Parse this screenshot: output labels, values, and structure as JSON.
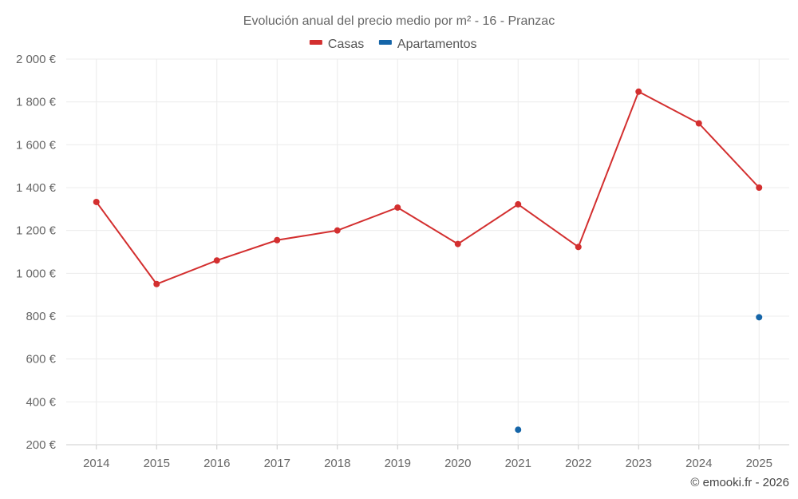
{
  "chart_data": {
    "type": "line",
    "title": "Evolución anual del precio medio por m² - 16 - Pranzac",
    "categories": [
      "2014",
      "2015",
      "2016",
      "2017",
      "2018",
      "2019",
      "2020",
      "2021",
      "2022",
      "2023",
      "2024",
      "2025"
    ],
    "series": [
      {
        "name": "Casas",
        "color": "#d32f2f",
        "values": [
          1333,
          950,
          1060,
          1155,
          1200,
          1307,
          1137,
          1322,
          1123,
          1848,
          1700,
          1400
        ]
      },
      {
        "name": "Apartamentos",
        "color": "#1565a8",
        "values": [
          null,
          null,
          null,
          null,
          null,
          null,
          null,
          270,
          null,
          null,
          null,
          795
        ]
      }
    ],
    "ylim": [
      200,
      2000
    ],
    "yticks": [
      200,
      400,
      600,
      800,
      1000,
      1200,
      1400,
      1600,
      1800,
      2000
    ],
    "ytick_labels": [
      "200 €",
      "400 €",
      "600 €",
      "800 €",
      "1 000 €",
      "1 200 €",
      "1 400 €",
      "1 600 €",
      "1 800 €",
      "2 000 €"
    ],
    "grid": true,
    "legend": "top-center"
  },
  "credit": "© emooki.fr - 2026"
}
